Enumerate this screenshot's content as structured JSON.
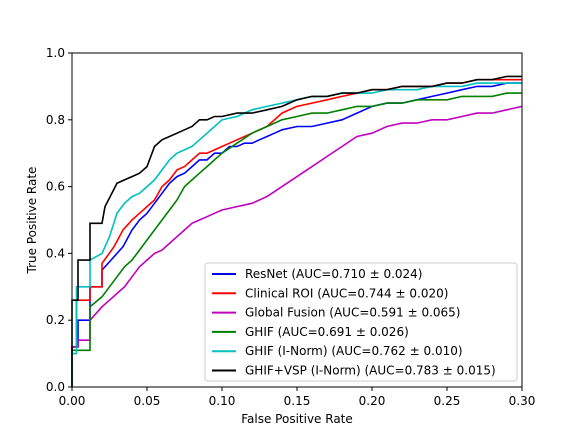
{
  "chart_data": {
    "type": "line",
    "title": "",
    "xlabel": "False Positive Rate",
    "ylabel": "True Positive Rate",
    "xlim": [
      0.0,
      0.3
    ],
    "ylim": [
      0.0,
      1.0
    ],
    "xticks": [
      "0.00",
      "0.05",
      "0.10",
      "0.15",
      "0.20",
      "0.25",
      "0.30"
    ],
    "yticks": [
      "0.0",
      "0.2",
      "0.4",
      "0.6",
      "0.8",
      "1.0"
    ],
    "grid": false,
    "legend_position": "lower-right",
    "series": [
      {
        "name": "ResNet (AUC=0.710 ± 0.024)",
        "color": "#0000ff",
        "x": [
          0,
          0,
          0.004,
          0.004,
          0.012,
          0.012,
          0.02,
          0.02,
          0.026,
          0.03,
          0.034,
          0.04,
          0.045,
          0.05,
          0.055,
          0.06,
          0.065,
          0.07,
          0.075,
          0.08,
          0.085,
          0.09,
          0.095,
          0.1,
          0.105,
          0.11,
          0.115,
          0.12,
          0.125,
          0.13,
          0.135,
          0.14,
          0.15,
          0.16,
          0.17,
          0.18,
          0.19,
          0.2,
          0.21,
          0.22,
          0.23,
          0.24,
          0.25,
          0.26,
          0.27,
          0.28,
          0.29,
          0.3
        ],
        "y": [
          0,
          0.12,
          0.12,
          0.2,
          0.2,
          0.3,
          0.3,
          0.35,
          0.38,
          0.4,
          0.42,
          0.47,
          0.5,
          0.52,
          0.55,
          0.58,
          0.61,
          0.63,
          0.64,
          0.66,
          0.68,
          0.68,
          0.7,
          0.7,
          0.72,
          0.72,
          0.73,
          0.73,
          0.74,
          0.75,
          0.76,
          0.77,
          0.78,
          0.78,
          0.79,
          0.8,
          0.82,
          0.84,
          0.85,
          0.85,
          0.86,
          0.87,
          0.88,
          0.89,
          0.9,
          0.9,
          0.91,
          0.91
        ]
      },
      {
        "name": "Clinical ROI (AUC=0.744 ± 0.020)",
        "color": "#ff0000",
        "x": [
          0,
          0,
          0.003,
          0.003,
          0.012,
          0.012,
          0.02,
          0.02,
          0.028,
          0.034,
          0.04,
          0.045,
          0.05,
          0.055,
          0.06,
          0.065,
          0.07,
          0.075,
          0.08,
          0.085,
          0.09,
          0.095,
          0.1,
          0.105,
          0.11,
          0.12,
          0.13,
          0.14,
          0.15,
          0.16,
          0.17,
          0.18,
          0.19,
          0.2,
          0.21,
          0.22,
          0.23,
          0.24,
          0.25,
          0.26,
          0.27,
          0.28,
          0.29,
          0.3
        ],
        "y": [
          0,
          0.12,
          0.12,
          0.26,
          0.26,
          0.3,
          0.3,
          0.37,
          0.42,
          0.47,
          0.5,
          0.52,
          0.54,
          0.56,
          0.6,
          0.62,
          0.65,
          0.66,
          0.68,
          0.7,
          0.7,
          0.71,
          0.72,
          0.73,
          0.74,
          0.76,
          0.78,
          0.82,
          0.84,
          0.85,
          0.86,
          0.87,
          0.88,
          0.89,
          0.89,
          0.9,
          0.9,
          0.9,
          0.91,
          0.91,
          0.92,
          0.92,
          0.92,
          0.92
        ]
      },
      {
        "name": "Global Fusion (AUC=0.591 ± 0.065)",
        "color": "#bf00bf",
        "x": [
          0,
          0,
          0.004,
          0.004,
          0.012,
          0.012,
          0.02,
          0.025,
          0.03,
          0.035,
          0.04,
          0.045,
          0.05,
          0.055,
          0.06,
          0.065,
          0.07,
          0.075,
          0.08,
          0.085,
          0.09,
          0.095,
          0.1,
          0.11,
          0.12,
          0.13,
          0.14,
          0.15,
          0.16,
          0.17,
          0.18,
          0.19,
          0.2,
          0.21,
          0.22,
          0.23,
          0.24,
          0.25,
          0.26,
          0.27,
          0.28,
          0.29,
          0.3
        ],
        "y": [
          0,
          0.12,
          0.12,
          0.14,
          0.14,
          0.2,
          0.24,
          0.26,
          0.28,
          0.3,
          0.33,
          0.36,
          0.38,
          0.4,
          0.41,
          0.43,
          0.45,
          0.47,
          0.49,
          0.5,
          0.51,
          0.52,
          0.53,
          0.54,
          0.55,
          0.57,
          0.6,
          0.63,
          0.66,
          0.69,
          0.72,
          0.75,
          0.76,
          0.78,
          0.79,
          0.79,
          0.8,
          0.8,
          0.81,
          0.82,
          0.82,
          0.83,
          0.84
        ]
      },
      {
        "name": "GHIF (AUC=0.691 ± 0.026)",
        "color": "#008000",
        "x": [
          0,
          0,
          0.004,
          0.004,
          0.012,
          0.012,
          0.02,
          0.025,
          0.03,
          0.035,
          0.04,
          0.045,
          0.05,
          0.055,
          0.06,
          0.065,
          0.07,
          0.075,
          0.08,
          0.085,
          0.09,
          0.095,
          0.1,
          0.11,
          0.12,
          0.13,
          0.14,
          0.15,
          0.16,
          0.17,
          0.18,
          0.19,
          0.2,
          0.21,
          0.22,
          0.23,
          0.24,
          0.25,
          0.26,
          0.27,
          0.28,
          0.29,
          0.3
        ],
        "y": [
          0,
          0.11,
          0.11,
          0.11,
          0.11,
          0.24,
          0.27,
          0.3,
          0.33,
          0.36,
          0.38,
          0.41,
          0.44,
          0.47,
          0.5,
          0.53,
          0.56,
          0.6,
          0.62,
          0.64,
          0.66,
          0.68,
          0.7,
          0.73,
          0.76,
          0.78,
          0.8,
          0.81,
          0.82,
          0.82,
          0.83,
          0.84,
          0.84,
          0.85,
          0.85,
          0.86,
          0.86,
          0.86,
          0.87,
          0.87,
          0.87,
          0.88,
          0.88
        ]
      },
      {
        "name": "GHIF (I-Norm) (AUC=0.762 ± 0.010)",
        "color": "#00bfbf",
        "x": [
          0,
          0,
          0.003,
          0.003,
          0.012,
          0.012,
          0.02,
          0.025,
          0.03,
          0.035,
          0.04,
          0.045,
          0.05,
          0.055,
          0.06,
          0.065,
          0.07,
          0.075,
          0.08,
          0.085,
          0.09,
          0.095,
          0.1,
          0.11,
          0.12,
          0.13,
          0.14,
          0.15,
          0.16,
          0.17,
          0.18,
          0.19,
          0.2,
          0.21,
          0.22,
          0.23,
          0.24,
          0.25,
          0.26,
          0.27,
          0.28,
          0.29,
          0.3
        ],
        "y": [
          0,
          0.1,
          0.1,
          0.3,
          0.3,
          0.38,
          0.4,
          0.45,
          0.52,
          0.55,
          0.57,
          0.58,
          0.6,
          0.62,
          0.65,
          0.68,
          0.7,
          0.71,
          0.72,
          0.74,
          0.76,
          0.78,
          0.8,
          0.81,
          0.83,
          0.84,
          0.85,
          0.86,
          0.87,
          0.87,
          0.88,
          0.88,
          0.88,
          0.89,
          0.89,
          0.89,
          0.9,
          0.9,
          0.9,
          0.91,
          0.91,
          0.91,
          0.91
        ]
      },
      {
        "name": "GHIF+VSP (I-Norm) (AUC=0.783 ± 0.015)",
        "color": "#000000",
        "x": [
          0,
          0,
          0.004,
          0.004,
          0.012,
          0.012,
          0.02,
          0.022,
          0.03,
          0.035,
          0.04,
          0.045,
          0.05,
          0.055,
          0.06,
          0.065,
          0.07,
          0.075,
          0.08,
          0.085,
          0.09,
          0.095,
          0.1,
          0.11,
          0.12,
          0.13,
          0.14,
          0.15,
          0.16,
          0.17,
          0.18,
          0.19,
          0.2,
          0.21,
          0.22,
          0.23,
          0.24,
          0.25,
          0.26,
          0.27,
          0.28,
          0.29,
          0.3
        ],
        "y": [
          0,
          0.26,
          0.26,
          0.38,
          0.38,
          0.49,
          0.49,
          0.54,
          0.61,
          0.62,
          0.63,
          0.64,
          0.66,
          0.72,
          0.74,
          0.75,
          0.76,
          0.77,
          0.78,
          0.8,
          0.8,
          0.81,
          0.81,
          0.82,
          0.82,
          0.83,
          0.84,
          0.86,
          0.87,
          0.87,
          0.88,
          0.88,
          0.89,
          0.89,
          0.9,
          0.9,
          0.9,
          0.91,
          0.91,
          0.92,
          0.92,
          0.93,
          0.93
        ]
      }
    ]
  }
}
